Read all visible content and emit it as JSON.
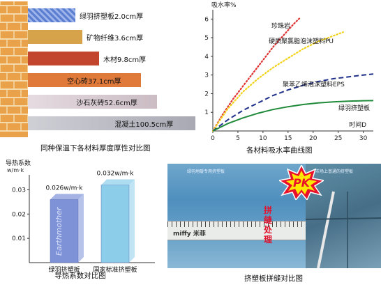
{
  "panel1": {
    "caption": "同种保温下各材料厚度厚性对比图",
    "bars": [
      {
        "label": "绿羽挤塑板2.0cm厚",
        "thickness_cm": 2.0,
        "color": "#5b7fd0"
      },
      {
        "label": "矿物纤维3.6cm厚",
        "thickness_cm": 3.6,
        "color": "#d7a34a"
      },
      {
        "label": "木材9.8cm厚",
        "thickness_cm": 9.8,
        "color": "#c2452e"
      },
      {
        "label": "空心砖37.1cm厚",
        "thickness_cm": 37.1,
        "color": "#e07a3a"
      },
      {
        "label": "沙石灰砖52.6cm厚",
        "thickness_cm": 52.6,
        "color": "#d9cbd0"
      },
      {
        "label": "混凝土100.5cm厚",
        "thickness_cm": 100.5,
        "color": "#b9b9c2"
      }
    ]
  },
  "chart_data": [
    {
      "type": "line",
      "title": "各材料吸水率曲线图",
      "ylabel": "吸水率%",
      "xlabel": "时间D",
      "xlim": [
        0,
        32
      ],
      "ylim": [
        0,
        6.2
      ],
      "xticks": [
        "0",
        "5",
        "10",
        "15",
        "20",
        "25",
        "30"
      ],
      "yticks": [
        "1",
        "2",
        "3",
        "4",
        "5",
        "6"
      ],
      "series": [
        {
          "name": "珍珠岩",
          "color": "#e03030",
          "style": "dotted",
          "x": [
            0,
            2,
            4,
            6,
            8,
            10,
            12,
            14,
            16,
            17.5
          ],
          "y": [
            0,
            0.9,
            1.7,
            2.4,
            3.1,
            3.8,
            4.5,
            5.1,
            5.7,
            6.1
          ]
        },
        {
          "name": "硬质聚氯脂泡沫塑料PU",
          "color": "#f2d21a",
          "style": "dotted",
          "x": [
            0,
            3,
            6,
            9,
            12,
            15,
            18,
            21,
            24,
            26
          ],
          "y": [
            0,
            1.2,
            2.1,
            2.8,
            3.4,
            3.9,
            4.4,
            4.8,
            5.1,
            5.3
          ]
        },
        {
          "name": "聚苯乙烯泡沫塑料EPS",
          "color": "#1f2f8a",
          "style": "dashed",
          "x": [
            0,
            3,
            6,
            9,
            12,
            15,
            18,
            21,
            24,
            27,
            30,
            32
          ],
          "y": [
            0,
            0.6,
            1.1,
            1.5,
            1.9,
            2.2,
            2.45,
            2.65,
            2.8,
            2.9,
            3.0,
            3.05
          ]
        },
        {
          "name": "绿羽挤塑板",
          "color": "#1f8a3a",
          "style": "solid",
          "x": [
            0,
            3,
            6,
            9,
            12,
            15,
            18,
            21,
            24,
            27,
            30,
            32
          ],
          "y": [
            0,
            0.4,
            0.7,
            0.95,
            1.15,
            1.3,
            1.42,
            1.5,
            1.56,
            1.6,
            1.62,
            1.63
          ]
        }
      ]
    },
    {
      "type": "bar",
      "title": "导热系数对比图",
      "ylabel": "导热系数",
      "yunit": "w/m·k",
      "ylim": [
        0,
        0.035
      ],
      "yticks": [
        "0.01",
        "0.02",
        "0.03"
      ],
      "categories": [
        "绿羽挤塑板",
        "国家标准挤塑板"
      ],
      "values": [
        0.026,
        0.032
      ],
      "value_labels": [
        "0.026w/m·k",
        "0.032w/m·k"
      ],
      "colors": [
        "#7e92d8",
        "#8ccde9"
      ]
    }
  ],
  "panel4": {
    "caption": "挤塑板拼缝对比图",
    "pk": "PK",
    "seam_text": "拼缝处理",
    "ruler_text": "miffy 米菲",
    "left_photo_label": "绿羽地暖专用挤塑板",
    "right_photo_label": "市场上普通的挤塑板"
  }
}
